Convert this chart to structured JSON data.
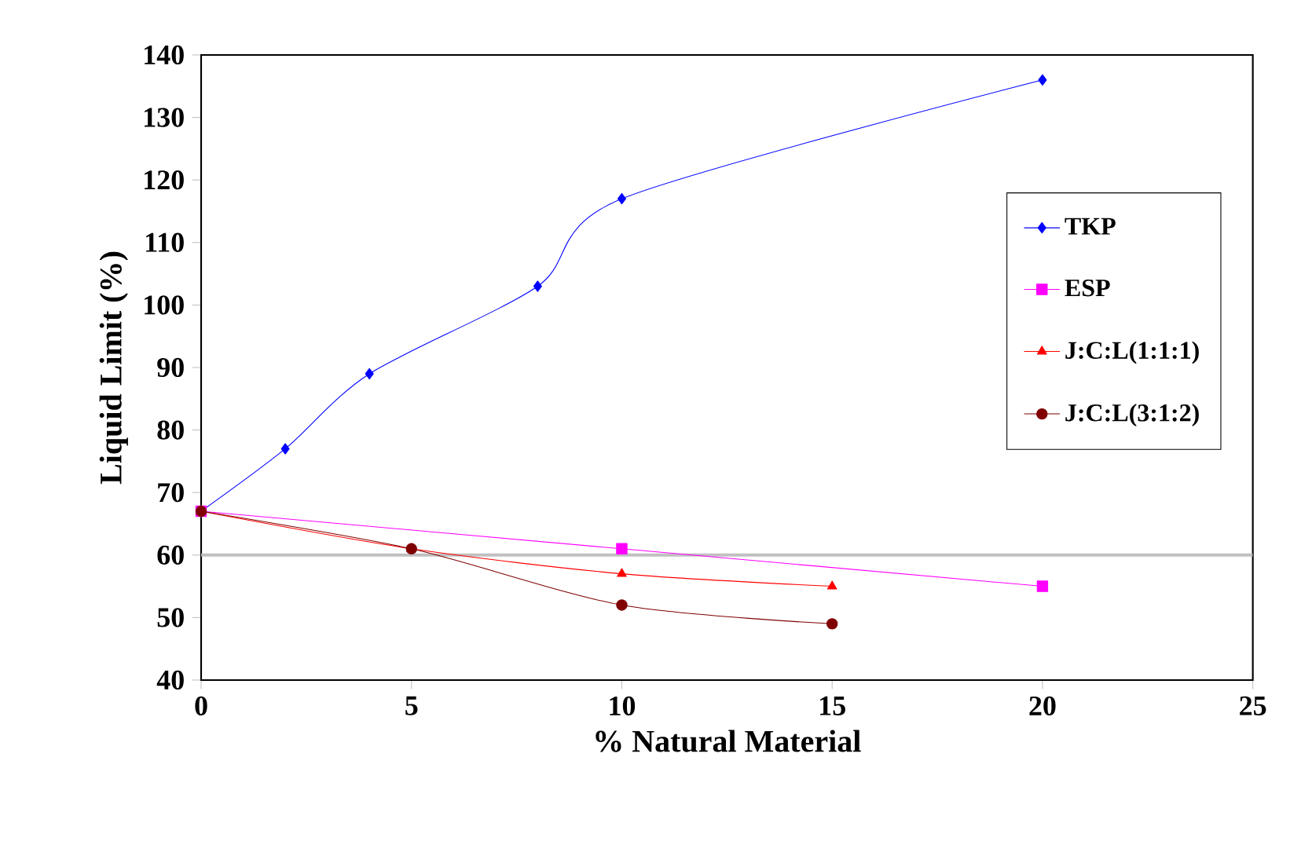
{
  "chart_data": {
    "type": "line",
    "xlabel": "% Natural Material",
    "ylabel": "Liquid Limit (%)",
    "xlim": [
      0,
      25
    ],
    "xticks": [
      0,
      5,
      10,
      15,
      20,
      25
    ],
    "ylim": [
      40,
      140
    ],
    "yticks": [
      40,
      50,
      60,
      70,
      80,
      90,
      100,
      110,
      120,
      130,
      140
    ],
    "grid": false,
    "legend": "right",
    "line_style": "solid",
    "ref_lines": [
      {
        "axis": "y",
        "value": 60,
        "color": "#c0c0c0"
      }
    ],
    "series": [
      {
        "name": "TKP",
        "color": "#0000ff",
        "marker": "diamond",
        "x": [
          0,
          2,
          4,
          8,
          10,
          20
        ],
        "values": [
          67,
          77,
          89,
          103,
          117,
          136
        ]
      },
      {
        "name": "ESP",
        "color": "#ff00ff",
        "marker": "square",
        "x": [
          0,
          10,
          20
        ],
        "values": [
          67,
          61,
          55
        ]
      },
      {
        "name": "J:C:L(1:1:1)",
        "color": "#ff0000",
        "marker": "triangle",
        "x": [
          0,
          5,
          10,
          15
        ],
        "values": [
          67,
          61,
          57,
          55
        ]
      },
      {
        "name": "J:C:L(3:1:2)",
        "color": "#800000",
        "marker": "circle",
        "x": [
          0,
          5,
          10,
          15
        ],
        "values": [
          67,
          61,
          52,
          49
        ]
      }
    ]
  }
}
